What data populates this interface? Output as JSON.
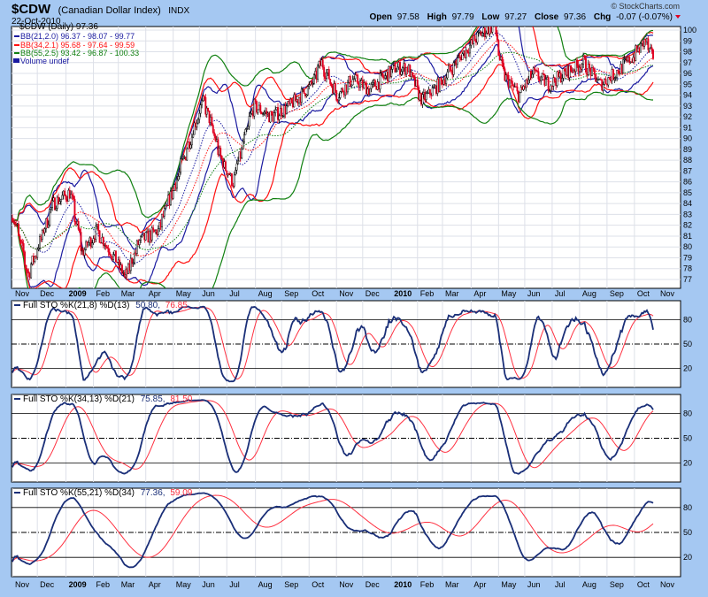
{
  "header": {
    "symbol": "$CDW",
    "name": "(Canadian Dollar Index)",
    "exchange": "INDX",
    "date": "22-Oct-2010",
    "watermark": "© StockCharts.com",
    "open_label": "Open",
    "open": "97.58",
    "high_label": "High",
    "high": "97.79",
    "low_label": "Low",
    "low": "97.27",
    "close_label": "Close",
    "close": "97.36",
    "chg_label": "Chg",
    "chg": "-0.07 (-0.07%)"
  },
  "legend": {
    "price": "$CDW (Daily) 97.36",
    "bb1": "BB(21,2.0) 96.37 - 98.07 - 99.77",
    "bb2": "BB(34,2.1) 95.68 - 97.64 - 99.59",
    "bb3": "BB(55,2.5) 93.42 - 96.87 - 100.33",
    "volume": "Volume undef"
  },
  "colors": {
    "bb1": "#1a1aa0",
    "bb2": "#ff1010",
    "bb3": "#108010",
    "k": "#1a2f78",
    "d": "#ff3040",
    "up": "#000000",
    "down": "#e00020",
    "background": "#a5c8f2"
  },
  "chart_data": [
    {
      "type": "candlestick",
      "title": "$CDW (Daily)",
      "y_ticks": [
        77,
        78,
        79,
        80,
        81,
        82,
        83,
        84,
        85,
        86,
        87,
        88,
        89,
        90,
        91,
        92,
        93,
        94,
        95,
        96,
        97,
        98,
        99,
        100
      ],
      "ylim": [
        76.3,
        101.1
      ],
      "x_ticks": [
        "Nov",
        "Dec",
        "2009",
        "Feb",
        "Mar",
        "Apr",
        "May",
        "Jun",
        "Jul",
        "Aug",
        "Sep",
        "Oct",
        "Nov",
        "Dec",
        "2010",
        "Feb",
        "Mar",
        "Apr",
        "May",
        "Jun",
        "Jul",
        "Aug",
        "Sep",
        "Oct",
        "Nov"
      ],
      "approx_closes": [
        [
          "2008-11-03",
          83
        ],
        [
          "2008-11-20",
          77.5
        ],
        [
          "2008-12-01",
          80
        ],
        [
          "2008-12-18",
          84
        ],
        [
          "2009-01-06",
          85
        ],
        [
          "2009-01-20",
          79.5
        ],
        [
          "2009-02-05",
          81.5
        ],
        [
          "2009-02-25",
          79
        ],
        [
          "2009-03-09",
          77.2
        ],
        [
          "2009-03-25",
          80.5
        ],
        [
          "2009-04-15",
          81.5
        ],
        [
          "2009-05-05",
          86
        ],
        [
          "2009-05-29",
          92
        ],
        [
          "2009-06-05",
          93.5
        ],
        [
          "2009-06-25",
          88
        ],
        [
          "2009-07-08",
          86
        ],
        [
          "2009-07-31",
          93
        ],
        [
          "2009-08-20",
          92
        ],
        [
          "2009-09-10",
          93
        ],
        [
          "2009-10-05",
          95
        ],
        [
          "2009-10-15",
          97
        ],
        [
          "2009-11-02",
          94
        ],
        [
          "2009-11-20",
          95.5
        ],
        [
          "2009-12-08",
          94.5
        ],
        [
          "2010-01-06",
          96.5
        ],
        [
          "2010-01-20",
          96.5
        ],
        [
          "2010-02-05",
          93.5
        ],
        [
          "2010-02-25",
          95
        ],
        [
          "2010-03-20",
          97.5
        ],
        [
          "2010-04-10",
          99.5
        ],
        [
          "2010-04-27",
          100.5
        ],
        [
          "2010-05-07",
          96
        ],
        [
          "2010-05-25",
          94
        ],
        [
          "2010-06-10",
          96
        ],
        [
          "2010-06-28",
          95
        ],
        [
          "2010-07-15",
          96
        ],
        [
          "2010-08-05",
          97
        ],
        [
          "2010-08-25",
          95
        ],
        [
          "2010-09-10",
          96
        ],
        [
          "2010-09-30",
          97.5
        ],
        [
          "2010-10-14",
          99
        ],
        [
          "2010-10-22",
          97.36
        ]
      ],
      "bollinger": [
        {
          "name": "BB(21,2.0)",
          "period": 21,
          "k": 2.0
        },
        {
          "name": "BB(34,2.1)",
          "period": 34,
          "k": 2.1
        },
        {
          "name": "BB(55,2.5)",
          "period": 55,
          "k": 2.5
        }
      ]
    },
    {
      "type": "line",
      "title": "Full STO %K(21,8) %D(13)",
      "label": "Full STO %K(21,8) %D(13)",
      "k_value": "50.80,",
      "d_value": "76.85",
      "params": [
        21,
        8,
        13
      ],
      "y_ticks": [
        20,
        50,
        80
      ],
      "ylim": [
        0,
        100
      ]
    },
    {
      "type": "line",
      "title": "Full STO %K(34,13) %D(21)",
      "label": "Full STO %K(34,13) %D(21)",
      "k_value": "75.85,",
      "d_value": "81.50",
      "params": [
        34,
        13,
        21
      ],
      "y_ticks": [
        20,
        50,
        80
      ],
      "ylim": [
        0,
        100
      ]
    },
    {
      "type": "line",
      "title": "Full STO %K(55,21) %D(34)",
      "label": "Full STO %K(55,21) %D(34)",
      "k_value": "77.36,",
      "d_value": "59.09",
      "params": [
        55,
        21,
        34
      ],
      "y_ticks": [
        20,
        50,
        80
      ],
      "ylim": [
        0,
        100
      ]
    }
  ]
}
